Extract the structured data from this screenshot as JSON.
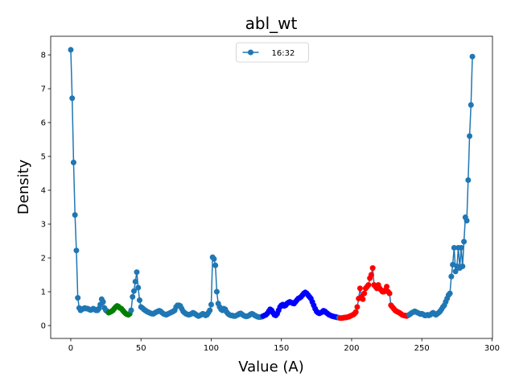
{
  "chart_data": {
    "type": "line",
    "title": "abl_wt",
    "x_label": "Value (A)",
    "y_label": "Density",
    "legend": "upper center",
    "series": [
      {
        "name": "16:32",
        "color": "#1f77b4",
        "values": [
          8.15,
          6.72,
          4.82,
          3.27,
          2.22,
          0.82,
          0.52,
          0.45,
          0.48,
          0.5,
          0.52,
          0.5,
          0.5,
          0.48,
          0.46,
          0.47,
          0.5,
          0.48,
          0.45,
          0.45,
          0.5,
          0.62,
          0.78,
          0.7,
          0.52,
          0.45,
          0.42,
          0.38,
          0.4,
          0.42,
          0.45,
          0.5,
          0.55,
          0.58,
          0.56,
          0.52,
          0.5,
          0.45,
          0.4,
          0.36,
          0.33,
          0.32,
          0.35,
          0.45,
          0.85,
          1.02,
          1.3,
          1.58,
          1.12,
          0.75,
          0.55,
          0.52,
          0.48,
          0.45,
          0.42,
          0.4,
          0.38,
          0.36,
          0.35,
          0.35,
          0.38,
          0.4,
          0.42,
          0.44,
          0.42,
          0.38,
          0.35,
          0.33,
          0.32,
          0.34,
          0.36,
          0.38,
          0.4,
          0.42,
          0.45,
          0.55,
          0.6,
          0.6,
          0.58,
          0.5,
          0.42,
          0.38,
          0.35,
          0.33,
          0.32,
          0.33,
          0.35,
          0.38,
          0.36,
          0.33,
          0.3,
          0.28,
          0.3,
          0.32,
          0.35,
          0.33,
          0.3,
          0.32,
          0.38,
          0.45,
          0.62,
          2.02,
          1.97,
          1.78,
          1.0,
          0.65,
          0.55,
          0.48,
          0.45,
          0.5,
          0.48,
          0.4,
          0.35,
          0.32,
          0.3,
          0.3,
          0.28,
          0.28,
          0.3,
          0.32,
          0.35,
          0.36,
          0.33,
          0.3,
          0.28,
          0.27,
          0.28,
          0.3,
          0.33,
          0.35,
          0.33,
          0.3,
          0.28,
          0.26,
          0.25,
          0.25,
          0.26,
          0.28,
          0.3,
          0.32,
          0.36,
          0.42,
          0.48,
          0.45,
          0.38,
          0.32,
          0.3,
          0.35,
          0.45,
          0.55,
          0.6,
          0.62,
          0.58,
          0.6,
          0.65,
          0.68,
          0.7,
          0.68,
          0.66,
          0.65,
          0.7,
          0.75,
          0.8,
          0.82,
          0.85,
          0.9,
          0.95,
          0.98,
          0.95,
          0.9,
          0.85,
          0.8,
          0.7,
          0.6,
          0.5,
          0.42,
          0.38,
          0.36,
          0.38,
          0.4,
          0.44,
          0.42,
          0.38,
          0.35,
          0.32,
          0.3,
          0.28,
          0.27,
          0.26,
          0.25,
          0.24,
          0.23,
          0.22,
          0.22,
          0.23,
          0.24,
          0.24,
          0.25,
          0.26,
          0.28,
          0.3,
          0.32,
          0.35,
          0.4,
          0.55,
          0.8,
          1.1,
          0.85,
          0.78,
          0.95,
          1.1,
          1.15,
          1.2,
          1.4,
          1.5,
          1.7,
          1.2,
          1.15,
          1.1,
          1.2,
          1.1,
          1.05,
          1.0,
          1.0,
          1.05,
          1.15,
          1.0,
          0.95,
          0.6,
          0.55,
          0.5,
          0.45,
          0.42,
          0.4,
          0.38,
          0.35,
          0.32,
          0.3,
          0.3,
          0.28,
          0.3,
          0.32,
          0.35,
          0.38,
          0.4,
          0.42,
          0.4,
          0.38,
          0.36,
          0.34,
          0.35,
          0.33,
          0.3,
          0.3,
          0.32,
          0.3,
          0.32,
          0.35,
          0.38,
          0.35,
          0.32,
          0.35,
          0.38,
          0.42,
          0.48,
          0.55,
          0.6,
          0.7,
          0.8,
          0.9,
          0.95,
          1.45,
          1.8,
          2.3,
          1.6,
          1.75,
          2.3,
          1.7,
          2.3,
          1.75,
          2.48,
          3.2,
          3.1,
          4.3,
          5.6,
          6.52,
          7.95
        ]
      }
    ],
    "highlights": [
      {
        "color": "green",
        "xrange": [
          27,
          42
        ]
      },
      {
        "color": "blue",
        "xrange": [
          137,
          190
        ]
      },
      {
        "color": "red",
        "xrange": [
          192,
          240
        ]
      }
    ],
    "xlim": [
      -14.3,
      300.3
    ],
    "ylim": [
      -0.38,
      8.55
    ],
    "xticks": [
      0,
      50,
      100,
      150,
      200,
      250,
      300
    ],
    "yticks": [
      0,
      1,
      2,
      3,
      4,
      5,
      6,
      7,
      8
    ]
  }
}
